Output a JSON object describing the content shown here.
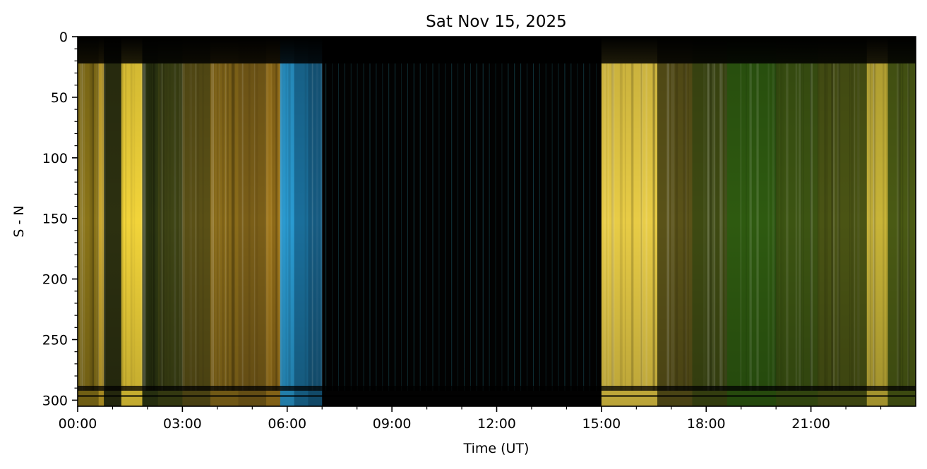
{
  "chart_data": {
    "type": "heatmap",
    "title": "Sat Nov 15, 2025",
    "xlabel": "Time (UT)",
    "ylabel": "S - N",
    "x_unit": "hours UT",
    "xlim": [
      0,
      24
    ],
    "ylim": [
      305,
      0
    ],
    "x_ticks": [
      {
        "value": 0,
        "label": "00:00"
      },
      {
        "value": 3,
        "label": "03:00"
      },
      {
        "value": 6,
        "label": "06:00"
      },
      {
        "value": 9,
        "label": "09:00"
      },
      {
        "value": 12,
        "label": "12:00"
      },
      {
        "value": 15,
        "label": "15:00"
      },
      {
        "value": 18,
        "label": "18:00"
      },
      {
        "value": 21,
        "label": "21:00"
      }
    ],
    "y_ticks": [
      {
        "value": 0,
        "label": "0"
      },
      {
        "value": 50,
        "label": "50"
      },
      {
        "value": 100,
        "label": "100"
      },
      {
        "value": 150,
        "label": "150"
      },
      {
        "value": 200,
        "label": "200"
      },
      {
        "value": 250,
        "label": "250"
      },
      {
        "value": 300,
        "label": "300"
      }
    ],
    "grid": false,
    "bands": [
      {
        "start": 0.0,
        "end": 0.6,
        "color": "#8a7418"
      },
      {
        "start": 0.6,
        "end": 0.75,
        "color": "#c9a628"
      },
      {
        "start": 0.75,
        "end": 1.25,
        "color": "#2c3010"
      },
      {
        "start": 1.25,
        "end": 1.85,
        "color": "#f2d43a"
      },
      {
        "start": 1.85,
        "end": 2.3,
        "color": "#2e3812"
      },
      {
        "start": 2.3,
        "end": 3.0,
        "color": "#3e4414"
      },
      {
        "start": 3.0,
        "end": 3.8,
        "color": "#5a5016"
      },
      {
        "start": 3.8,
        "end": 4.6,
        "color": "#8a6c1a"
      },
      {
        "start": 4.6,
        "end": 5.4,
        "color": "#7a5e18"
      },
      {
        "start": 5.4,
        "end": 5.8,
        "color": "#a0781c"
      },
      {
        "start": 5.8,
        "end": 6.2,
        "color": "#2a9ad0"
      },
      {
        "start": 6.2,
        "end": 6.6,
        "color": "#1a6e9a"
      },
      {
        "start": 6.6,
        "end": 7.0,
        "color": "#155a80"
      },
      {
        "start": 7.0,
        "end": 15.0,
        "color": "#020202"
      },
      {
        "start": 15.0,
        "end": 16.6,
        "color": "#e8cc46"
      },
      {
        "start": 16.6,
        "end": 17.6,
        "color": "#5a5218"
      },
      {
        "start": 17.6,
        "end": 18.6,
        "color": "#3e4a12"
      },
      {
        "start": 18.6,
        "end": 20.0,
        "color": "#2e5a10"
      },
      {
        "start": 20.0,
        "end": 21.2,
        "color": "#3c5412"
      },
      {
        "start": 21.2,
        "end": 22.6,
        "color": "#4a5414"
      },
      {
        "start": 22.6,
        "end": 23.2,
        "color": "#c8b438"
      },
      {
        "start": 23.2,
        "end": 24.0,
        "color": "#4a5a14"
      }
    ]
  }
}
